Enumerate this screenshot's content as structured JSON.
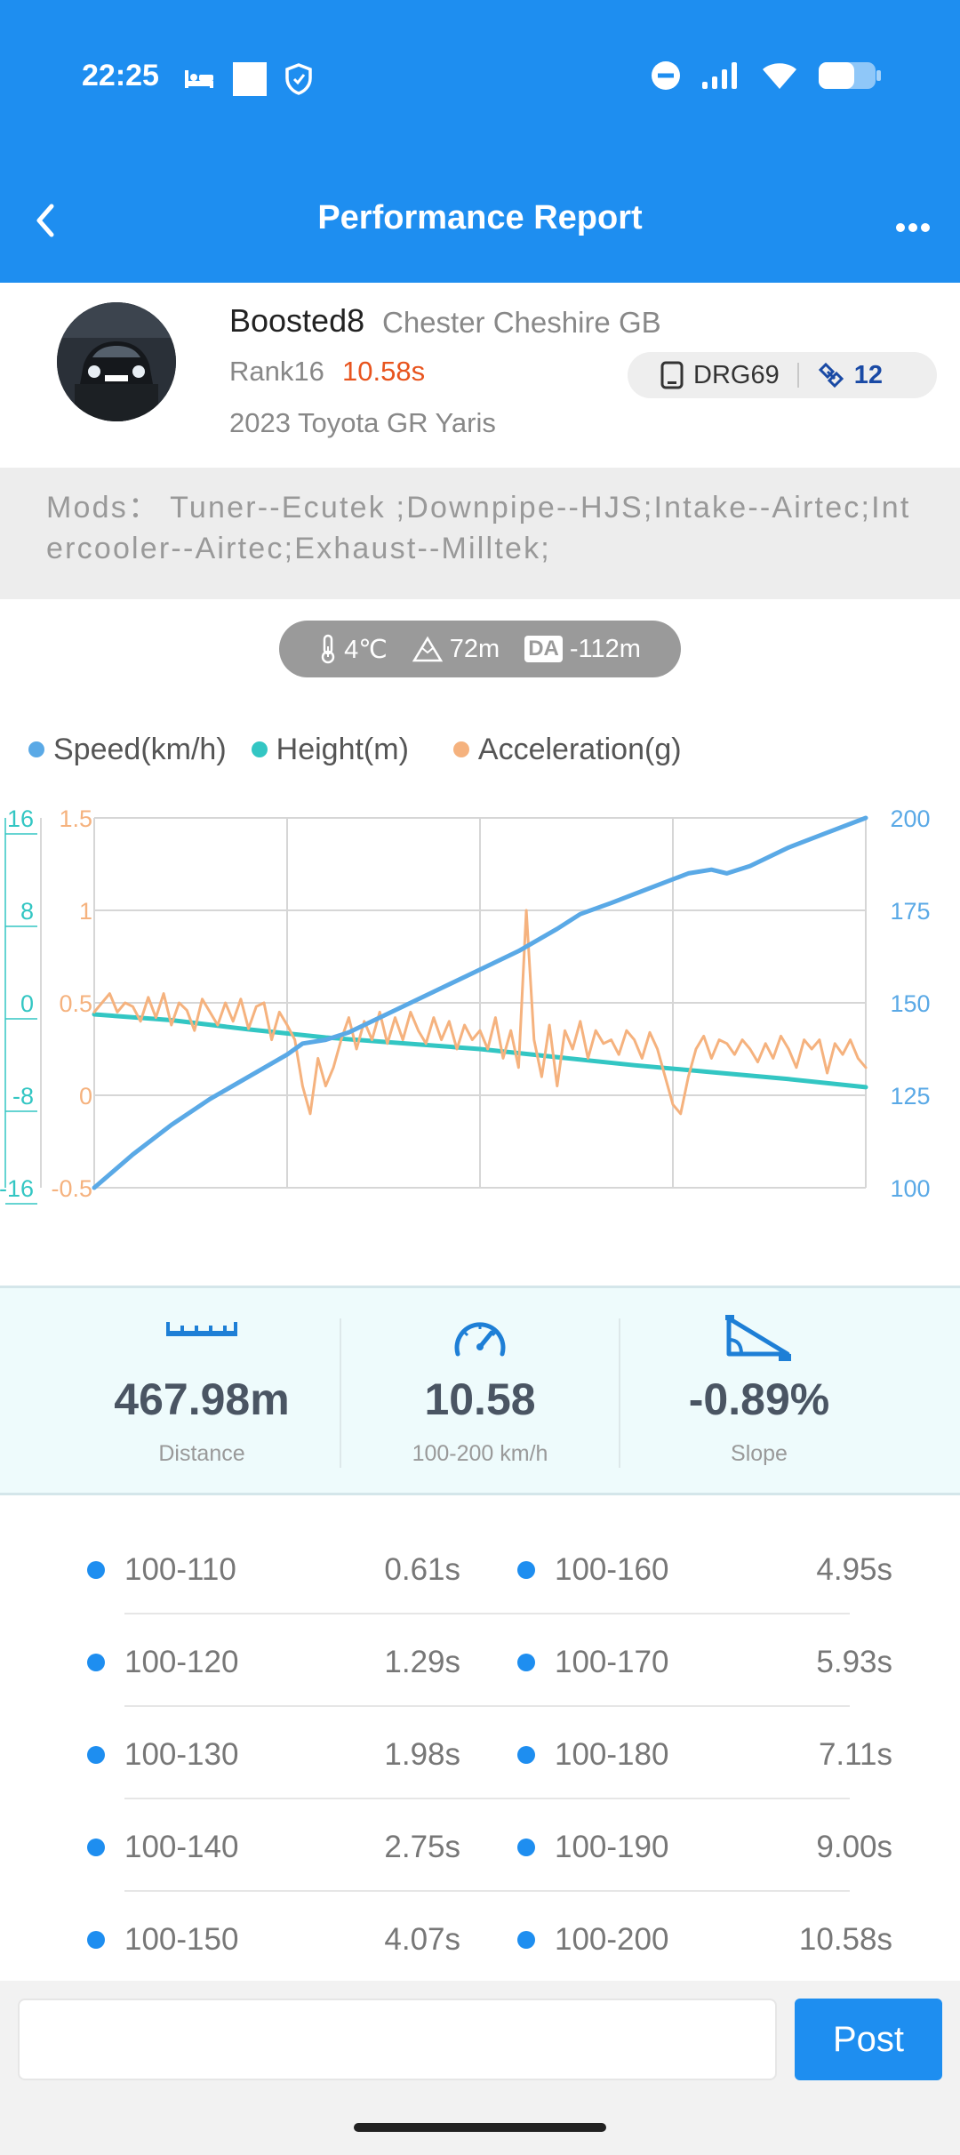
{
  "status_bar": {
    "time": "22:25"
  },
  "nav": {
    "title": "Performance Report"
  },
  "profile": {
    "username": "Boosted8",
    "location": "Chester Cheshire GB",
    "rank": "Rank16",
    "rank_time": "10.58s",
    "car": "2023 Toyota GR Yaris",
    "device": "DRG69",
    "satellites": "12"
  },
  "mods": {
    "text": "Mods：  Tuner--Ecutek ;Downpipe--HJS;Intake--Airtec;Intercooler--Airtec;Exhaust--Milltek;"
  },
  "environment": {
    "temperature": "4℃",
    "altitude": "72m",
    "da_badge": "DA",
    "density_altitude": "-112m"
  },
  "legend": {
    "speed": "Speed(km/h)",
    "height": "Height(m)",
    "acceleration": "Acceleration(g)"
  },
  "colors": {
    "brand": "#1e8ef0",
    "speed": "#5aa9e6",
    "height": "#33c6c3",
    "acceleration": "#f5b27e",
    "rank_time": "#e8541e"
  },
  "chart_data": {
    "type": "line",
    "axes": {
      "height_left": {
        "ticks": [
          "16",
          "8",
          "0",
          "-8",
          "-16"
        ],
        "range": [
          -16,
          16
        ]
      },
      "accel_left": {
        "ticks": [
          "1.5",
          "1",
          "0.5",
          "0",
          "-0.5"
        ],
        "range": [
          -0.5,
          1.5
        ]
      },
      "speed_right": {
        "ticks": [
          "200",
          "175",
          "150",
          "125",
          "100"
        ],
        "range": [
          100,
          200
        ]
      }
    },
    "grid": true,
    "x_range": [
      0,
      100
    ],
    "series": [
      {
        "name": "Speed(km/h)",
        "axis": "speed_right",
        "points": [
          [
            0,
            100
          ],
          [
            5,
            109
          ],
          [
            10,
            117
          ],
          [
            15,
            124
          ],
          [
            20,
            130
          ],
          [
            25,
            136
          ],
          [
            27,
            139
          ],
          [
            30,
            140
          ],
          [
            33,
            142
          ],
          [
            37,
            146
          ],
          [
            41,
            150
          ],
          [
            45,
            154
          ],
          [
            50,
            159
          ],
          [
            55,
            164
          ],
          [
            60,
            170
          ],
          [
            63,
            174
          ],
          [
            67,
            177
          ],
          [
            72,
            181
          ],
          [
            77,
            185
          ],
          [
            80,
            186
          ],
          [
            82,
            185
          ],
          [
            85,
            187
          ],
          [
            90,
            192
          ],
          [
            95,
            196
          ],
          [
            100,
            200
          ]
        ]
      },
      {
        "name": "Height(m)",
        "axis": "height_left",
        "points": [
          [
            0,
            -1
          ],
          [
            10,
            -1.5
          ],
          [
            20,
            -2.3
          ],
          [
            30,
            -3
          ],
          [
            40,
            -3.5
          ],
          [
            50,
            -4
          ],
          [
            60,
            -4.7
          ],
          [
            70,
            -5.4
          ],
          [
            80,
            -6
          ],
          [
            90,
            -6.6
          ],
          [
            100,
            -7.3
          ]
        ]
      },
      {
        "name": "Acceleration(g)",
        "axis": "accel_left",
        "points": [
          [
            0,
            0.45
          ],
          [
            1,
            0.5
          ],
          [
            2,
            0.55
          ],
          [
            3,
            0.45
          ],
          [
            4,
            0.5
          ],
          [
            5,
            0.48
          ],
          [
            6,
            0.4
          ],
          [
            7,
            0.53
          ],
          [
            8,
            0.42
          ],
          [
            9,
            0.55
          ],
          [
            10,
            0.38
          ],
          [
            11,
            0.5
          ],
          [
            12,
            0.46
          ],
          [
            13,
            0.35
          ],
          [
            14,
            0.52
          ],
          [
            15,
            0.45
          ],
          [
            16,
            0.38
          ],
          [
            17,
            0.5
          ],
          [
            18,
            0.4
          ],
          [
            19,
            0.52
          ],
          [
            20,
            0.36
          ],
          [
            21,
            0.48
          ],
          [
            22,
            0.5
          ],
          [
            23,
            0.3
          ],
          [
            24,
            0.45
          ],
          [
            25,
            0.38
          ],
          [
            26,
            0.3
          ],
          [
            27,
            0.05
          ],
          [
            28,
            -0.1
          ],
          [
            29,
            0.2
          ],
          [
            30,
            0.05
          ],
          [
            31,
            0.15
          ],
          [
            32,
            0.3
          ],
          [
            33,
            0.42
          ],
          [
            34,
            0.25
          ],
          [
            35,
            0.4
          ],
          [
            36,
            0.3
          ],
          [
            37,
            0.45
          ],
          [
            38,
            0.28
          ],
          [
            39,
            0.42
          ],
          [
            40,
            0.3
          ],
          [
            41,
            0.45
          ],
          [
            42,
            0.35
          ],
          [
            43,
            0.28
          ],
          [
            44,
            0.42
          ],
          [
            45,
            0.3
          ],
          [
            46,
            0.4
          ],
          [
            47,
            0.25
          ],
          [
            48,
            0.38
          ],
          [
            49,
            0.3
          ],
          [
            50,
            0.35
          ],
          [
            51,
            0.25
          ],
          [
            52,
            0.42
          ],
          [
            53,
            0.2
          ],
          [
            54,
            0.35
          ],
          [
            55,
            0.15
          ],
          [
            56,
            1.0
          ],
          [
            57,
            0.3
          ],
          [
            58,
            0.1
          ],
          [
            59,
            0.38
          ],
          [
            60,
            0.05
          ],
          [
            61,
            0.35
          ],
          [
            62,
            0.25
          ],
          [
            63,
            0.4
          ],
          [
            64,
            0.2
          ],
          [
            65,
            0.35
          ],
          [
            66,
            0.28
          ],
          [
            67,
            0.3
          ],
          [
            68,
            0.22
          ],
          [
            69,
            0.35
          ],
          [
            70,
            0.3
          ],
          [
            71,
            0.2
          ],
          [
            72,
            0.34
          ],
          [
            73,
            0.25
          ],
          [
            74,
            0.1
          ],
          [
            75,
            -0.05
          ],
          [
            76,
            -0.1
          ],
          [
            77,
            0.1
          ],
          [
            78,
            0.25
          ],
          [
            79,
            0.32
          ],
          [
            80,
            0.2
          ],
          [
            81,
            0.3
          ],
          [
            82,
            0.28
          ],
          [
            83,
            0.22
          ],
          [
            84,
            0.3
          ],
          [
            85,
            0.25
          ],
          [
            86,
            0.18
          ],
          [
            87,
            0.28
          ],
          [
            88,
            0.2
          ],
          [
            89,
            0.32
          ],
          [
            90,
            0.25
          ],
          [
            91,
            0.15
          ],
          [
            92,
            0.3
          ],
          [
            93,
            0.25
          ],
          [
            94,
            0.3
          ],
          [
            95,
            0.12
          ],
          [
            96,
            0.28
          ],
          [
            97,
            0.22
          ],
          [
            98,
            0.3
          ],
          [
            99,
            0.2
          ],
          [
            100,
            0.15
          ]
        ]
      }
    ]
  },
  "stats": [
    {
      "value": "467.98m",
      "label": "Distance",
      "icon": "ruler-icon"
    },
    {
      "value": "10.58",
      "label": "100-200 km/h",
      "icon": "speedometer-icon"
    },
    {
      "value": "-0.89%",
      "label": "Slope",
      "icon": "slope-icon"
    }
  ],
  "splits": [
    {
      "range": "100-110",
      "time": "0.61s"
    },
    {
      "range": "100-120",
      "time": "1.29s"
    },
    {
      "range": "100-130",
      "time": "1.98s"
    },
    {
      "range": "100-140",
      "time": "2.75s"
    },
    {
      "range": "100-150",
      "time": "4.07s"
    },
    {
      "range": "100-160",
      "time": "4.95s"
    },
    {
      "range": "100-170",
      "time": "5.93s"
    },
    {
      "range": "100-180",
      "time": "7.11s"
    },
    {
      "range": "100-190",
      "time": "9.00s"
    },
    {
      "range": "100-200",
      "time": "10.58s"
    }
  ],
  "comment": {
    "placeholder": "",
    "post_label": "Post"
  }
}
